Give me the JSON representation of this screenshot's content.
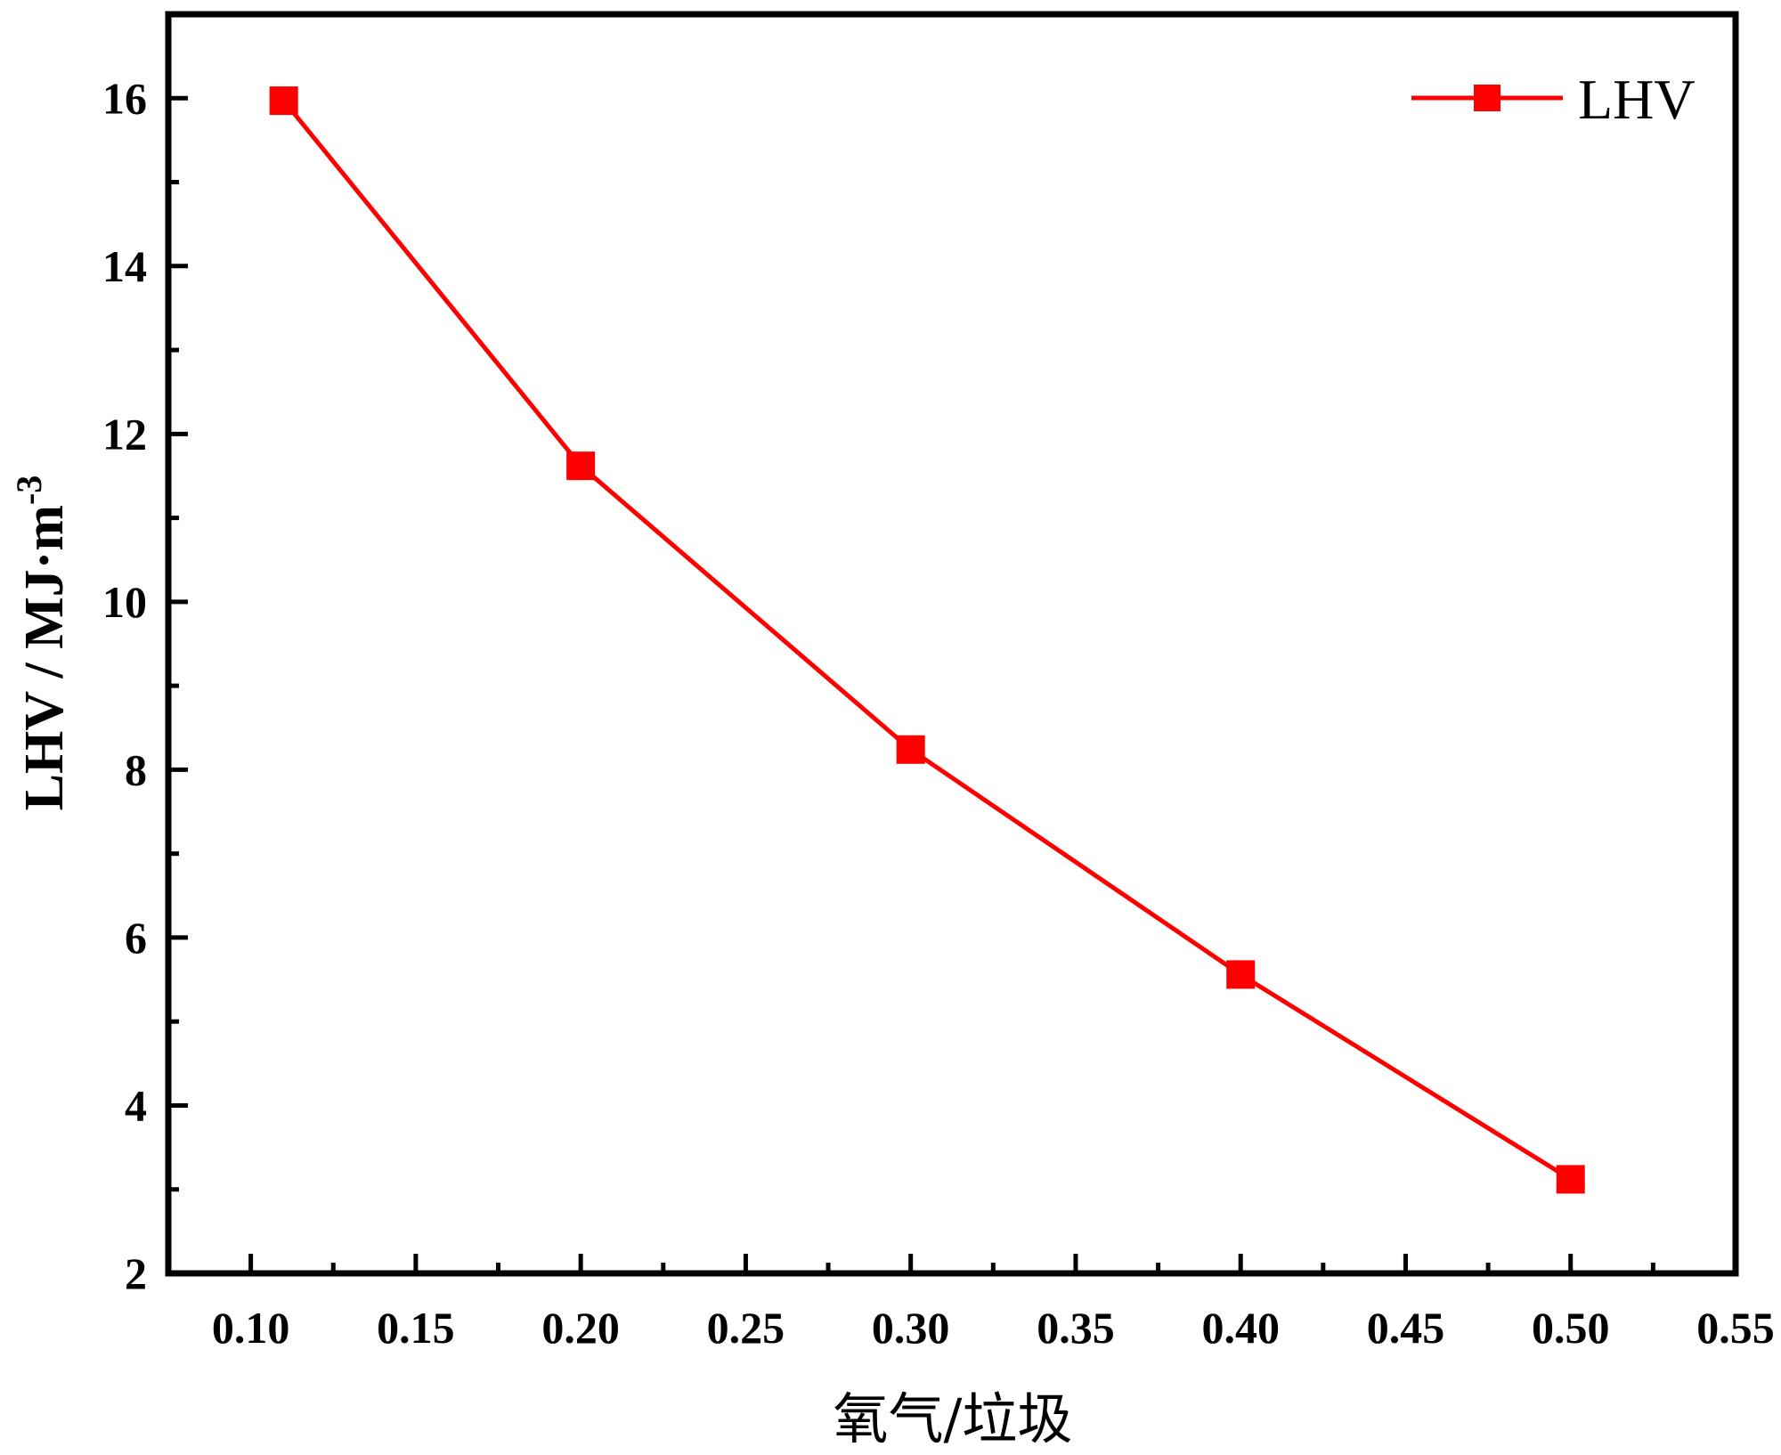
{
  "chart_data": {
    "type": "line",
    "x": [
      0.11,
      0.2,
      0.3,
      0.4,
      0.5
    ],
    "series": [
      {
        "name": "LHV",
        "values": [
          15.97,
          11.62,
          8.24,
          5.56,
          3.12
        ],
        "color": "#ff0000",
        "marker": "square"
      }
    ],
    "title": "",
    "xlabel": "氧气/垃圾",
    "ylabel": "LHV / MJ·m",
    "ylabel_superscript": "-3",
    "xlim": [
      0.075,
      0.55
    ],
    "ylim": [
      2,
      17
    ],
    "xticks": [
      "0.10",
      "0.15",
      "0.20",
      "0.25",
      "0.30",
      "0.35",
      "0.40",
      "0.45",
      "0.50",
      "0.55"
    ],
    "yticks": [
      "2",
      "4",
      "6",
      "8",
      "10",
      "12",
      "14",
      "16"
    ],
    "grid": false,
    "legend_position": "top-right"
  }
}
